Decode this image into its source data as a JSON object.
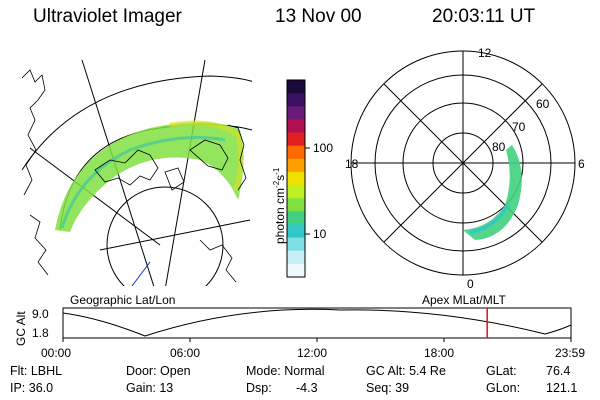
{
  "header": {
    "instrument": "Ultraviolet Imager",
    "date": "13 Nov 00",
    "time": "20:03:11 UT"
  },
  "colorbar": {
    "unit_label_main": "photon cm",
    "unit_sup1": "-2",
    "unit_mid": "s",
    "unit_sup2": "-1",
    "tick_labels": [
      "100",
      "10"
    ],
    "colors": [
      "#1a0a3a",
      "#3a1060",
      "#6a1a7a",
      "#b01050",
      "#e02020",
      "#ff6a00",
      "#ffa000",
      "#f0e000",
      "#c0f020",
      "#7fe040",
      "#40d080",
      "#30c8c8",
      "#80e0e8",
      "#c8f0f4",
      "#eefafc"
    ]
  },
  "polar_plot": {
    "mlt_labels": [
      "12",
      "18",
      "6",
      "0"
    ],
    "lat_labels": [
      "60",
      "70",
      "80"
    ],
    "aurora_color": "#40d080"
  },
  "map_plot": {
    "aurora_color": "#7fe040"
  },
  "altitude_strip": {
    "left_label": "Geographic Lat/Lon",
    "right_label": "Apex MLat/MLT",
    "y_axis_label": "GC Alt",
    "y_ticks": [
      "9.0",
      "1.8"
    ],
    "x_ticks": [
      "00:00",
      "06:00",
      "12:00",
      "18:00",
      "23:59"
    ],
    "current_time_marker_fraction": 0.835,
    "marker_color": "#e01010"
  },
  "info": {
    "filter": "Flt: LBHL",
    "ip": "IP: 36.0",
    "door": "Door: Open",
    "gain": "Gain: 13",
    "mode": "Mode: Normal",
    "dsp_label": "Dsp:",
    "dsp_value": "-4.3",
    "gc_alt": "GC Alt: 5.4 Re",
    "seq": "Seq: 39",
    "glat_label": "GLat:",
    "glat_value": "76.4",
    "glon_label": "GLon:",
    "glon_value": "121.1"
  }
}
